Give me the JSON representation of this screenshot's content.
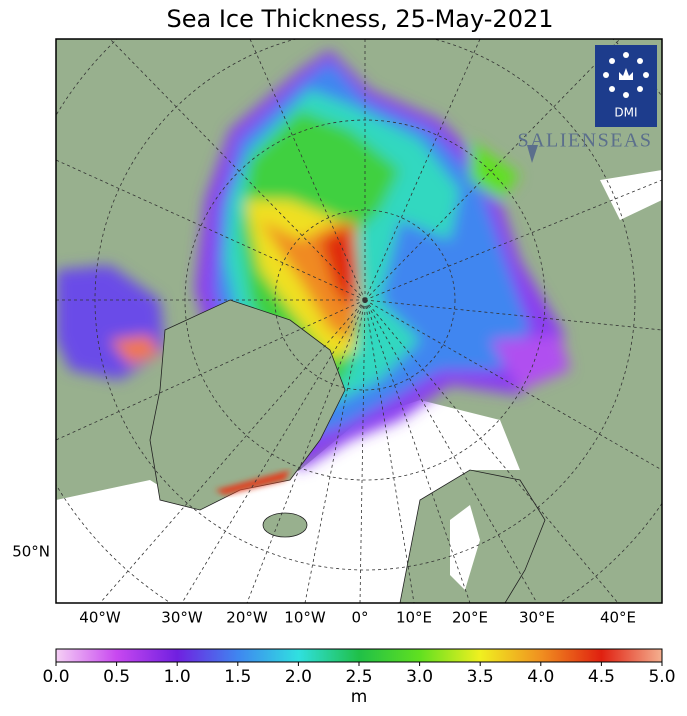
{
  "title": "Sea Ice Thickness, 25-May-2021",
  "longitude_labels": [
    "40°W",
    "30°W",
    "20°W",
    "10°W",
    "0°",
    "10°E",
    "20°E",
    "30°E",
    "40°E"
  ],
  "latitude_labels": [
    "50°N"
  ],
  "logo": {
    "agency": "DMI",
    "partner": "SALIENSEAS"
  },
  "colorbar": {
    "range": [
      0,
      5
    ],
    "ticks": [
      {
        "value": 0,
        "label": "0.0"
      },
      {
        "value": 0.5,
        "label": "0.5"
      },
      {
        "value": 1,
        "label": "1.0"
      },
      {
        "value": 1.5,
        "label": "1.5"
      },
      {
        "value": 2,
        "label": "2.0"
      },
      {
        "value": 2.5,
        "label": "2.5"
      },
      {
        "value": 3,
        "label": "3.0"
      },
      {
        "value": 3.5,
        "label": "3.5"
      },
      {
        "value": 4,
        "label": "4.0"
      },
      {
        "value": 4.5,
        "label": "4.5"
      },
      {
        "value": 5,
        "label": "5.0"
      }
    ],
    "label": "m"
  }
}
